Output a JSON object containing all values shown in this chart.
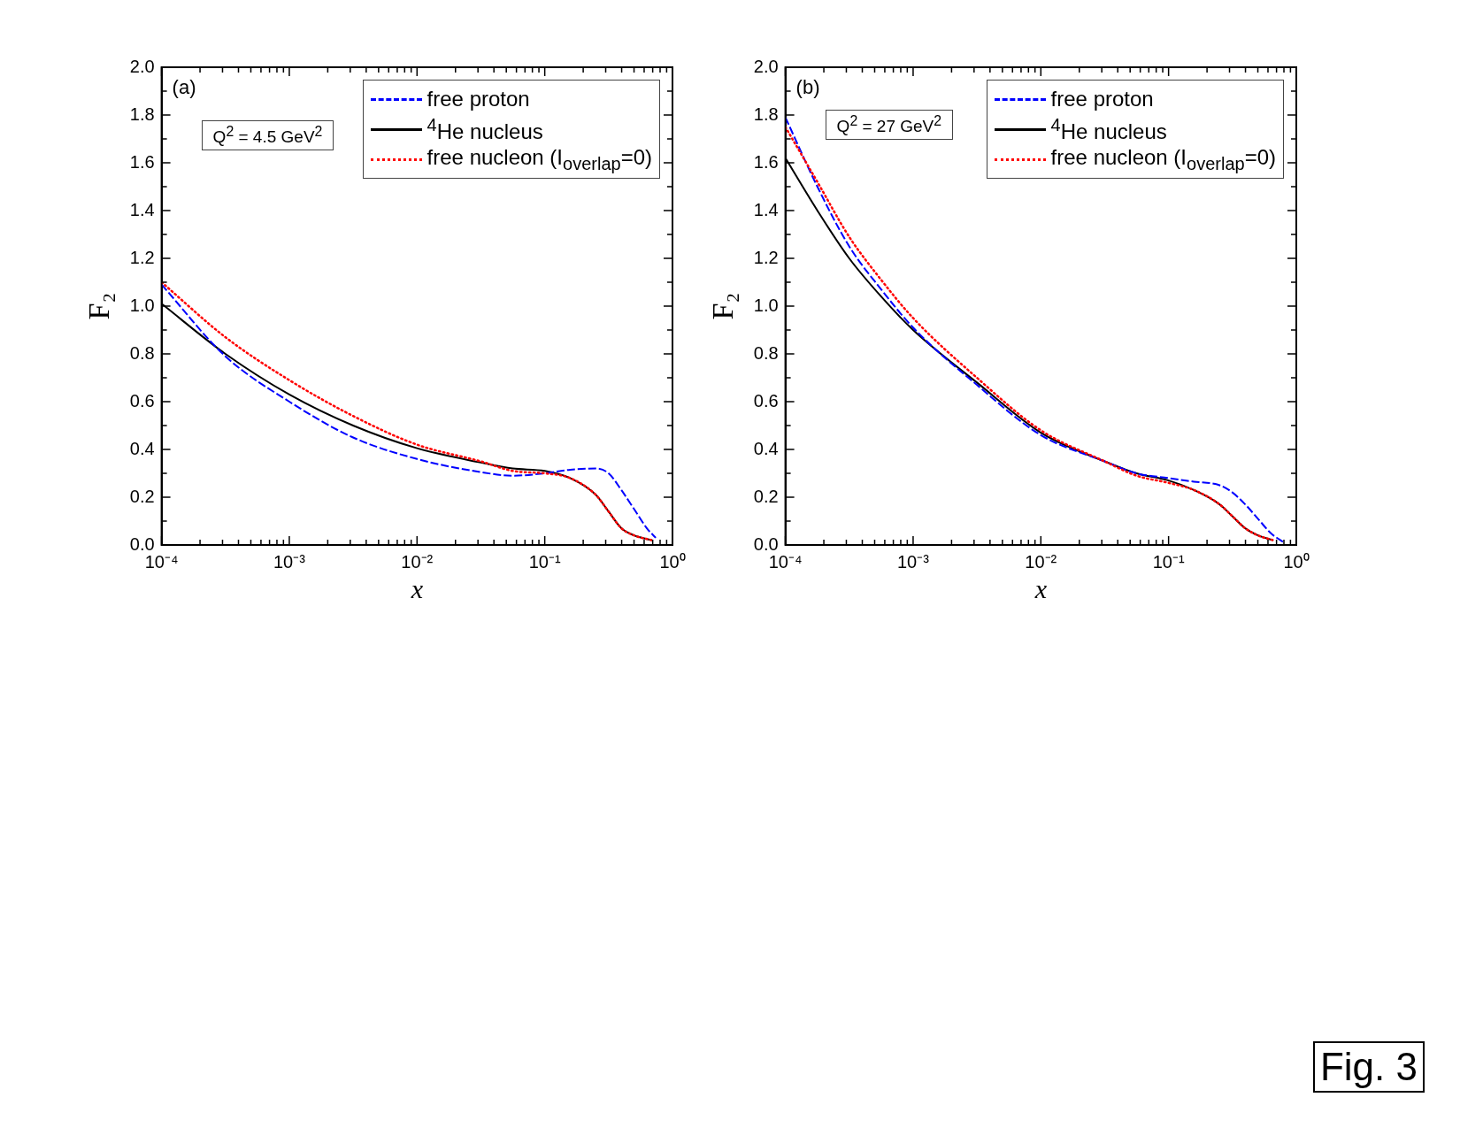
{
  "chart_data": [
    {
      "type": "line",
      "xlabel": "x",
      "ylabel": "F₂",
      "log": "x",
      "legend": "top right",
      "tick_labels": "xy",
      "grid": false,
      "annotations": [
        "(a)",
        "Q$^{2}$ = 4.5 GeV$^{2}$"
      ],
      "xlim": [
        0.0001,
        1
      ],
      "xticks": [
        {
          "value": 0.0001,
          "label": "10⁻⁴"
        },
        {
          "value": 0.0002,
          "label": null
        },
        {
          "value": 0.0003,
          "label": null
        },
        {
          "value": 0.0004,
          "label": null
        },
        {
          "value": 0.0005,
          "label": null
        },
        {
          "value": 0.0006,
          "label": null
        },
        {
          "value": 0.0007,
          "label": null
        },
        {
          "value": 0.0008,
          "label": null
        },
        {
          "value": 0.0009,
          "label": null
        },
        {
          "value": 0.001,
          "label": "10⁻³"
        },
        {
          "value": 0.002,
          "label": null
        },
        {
          "value": 0.003,
          "label": null
        },
        {
          "value": 0.004,
          "label": null
        },
        {
          "value": 0.005,
          "label": null
        },
        {
          "value": 0.006,
          "label": null
        },
        {
          "value": 0.007,
          "label": null
        },
        {
          "value": 0.008,
          "label": null
        },
        {
          "value": 0.009,
          "label": null
        },
        {
          "value": 0.01,
          "label": "10⁻²"
        },
        {
          "value": 0.02,
          "label": null
        },
        {
          "value": 0.03,
          "label": null
        },
        {
          "value": 0.04,
          "label": null
        },
        {
          "value": 0.05,
          "label": null
        },
        {
          "value": 0.06,
          "label": null
        },
        {
          "value": 0.07,
          "label": null
        },
        {
          "value": 0.08,
          "label": null
        },
        {
          "value": 0.09,
          "label": null
        },
        {
          "value": 0.1,
          "label": "10⁻¹"
        },
        {
          "value": 0.2,
          "label": null
        },
        {
          "value": 0.3,
          "label": null
        },
        {
          "value": 0.4,
          "label": null
        },
        {
          "value": 0.5,
          "label": null
        },
        {
          "value": 0.6,
          "label": null
        },
        {
          "value": 0.7,
          "label": null
        },
        {
          "value": 0.8,
          "label": null
        },
        {
          "value": 0.9,
          "label": null
        },
        {
          "value": 1,
          "label": "10⁰"
        }
      ],
      "ylim": [
        0,
        2
      ],
      "yticks": [
        {
          "value": 0,
          "label": "0.0"
        },
        {
          "value": 0.1,
          "label": null
        },
        {
          "value": 0.2,
          "label": "0.2"
        },
        {
          "value": 0.3,
          "label": null
        },
        {
          "value": 0.4,
          "label": "0.4"
        },
        {
          "value": 0.5,
          "label": null
        },
        {
          "value": 0.6,
          "label": "0.6"
        },
        {
          "value": 0.7,
          "label": null
        },
        {
          "value": 0.8,
          "label": "0.8"
        },
        {
          "value": 0.9,
          "label": null
        },
        {
          "value": 1,
          "label": "1.0"
        },
        {
          "value": 1.1,
          "label": null
        },
        {
          "value": 1.2,
          "label": "1.2"
        },
        {
          "value": 1.3,
          "label": null
        },
        {
          "value": 1.4,
          "label": "1.4"
        },
        {
          "value": 1.5,
          "label": null
        },
        {
          "value": 1.6,
          "label": "1.6"
        },
        {
          "value": 1.7,
          "label": null
        },
        {
          "value": 1.8,
          "label": "1.8"
        },
        {
          "value": 1.9,
          "label": null
        },
        {
          "value": 2,
          "label": "2.0"
        }
      ],
      "series": [
        {
          "name": "free proton",
          "color": "#0000ff",
          "line_style": "dashed",
          "x": [
            0.0001,
            0.000316,
            0.001,
            0.00316,
            0.01,
            0.0316,
            0.0562,
            0.1,
            0.158,
            0.251,
            0.316,
            0.398,
            0.501,
            0.63,
            0.74
          ],
          "values": [
            1.09,
            0.79,
            0.6,
            0.45,
            0.36,
            0.305,
            0.29,
            0.3,
            0.315,
            0.32,
            0.3,
            0.23,
            0.15,
            0.07,
            0.03
          ]
        },
        {
          "name": "$^{4}$He nucleus",
          "color": "#000000",
          "line_style": "solid",
          "x": [
            0.0001,
            0.000316,
            0.001,
            0.00316,
            0.01,
            0.0316,
            0.0562,
            0.1,
            0.158,
            0.251,
            0.316,
            0.398,
            0.501,
            0.69
          ],
          "values": [
            1.01,
            0.8,
            0.63,
            0.5,
            0.405,
            0.345,
            0.32,
            0.31,
            0.28,
            0.21,
            0.14,
            0.07,
            0.04,
            0.02
          ]
        },
        {
          "name": "free nucleon (I$_{overlap}$=0)",
          "color": "#ff0000",
          "line_style": "dotted",
          "x": [
            0.0001,
            0.000316,
            0.001,
            0.00316,
            0.01,
            0.0316,
            0.0562,
            0.1,
            0.158,
            0.251,
            0.316,
            0.398,
            0.501,
            0.69
          ],
          "values": [
            1.1,
            0.87,
            0.69,
            0.54,
            0.42,
            0.35,
            0.31,
            0.3,
            0.28,
            0.21,
            0.14,
            0.07,
            0.04,
            0.02
          ]
        }
      ]
    },
    {
      "type": "line",
      "xlabel": "x",
      "ylabel": "F₂",
      "log": "x",
      "legend": "top right",
      "tick_labels": "xy",
      "grid": false,
      "annotations": [
        "(b)",
        "Q$^{2}$ = 27 GeV$^{2}$",
        "Fig. 3"
      ],
      "xlim": [
        0.0001,
        1
      ],
      "xticks": [
        {
          "value": 0.0001,
          "label": "10⁻⁴"
        },
        {
          "value": 0.0002,
          "label": null
        },
        {
          "value": 0.0003,
          "label": null
        },
        {
          "value": 0.0004,
          "label": null
        },
        {
          "value": 0.0005,
          "label": null
        },
        {
          "value": 0.0006,
          "label": null
        },
        {
          "value": 0.0007,
          "label": null
        },
        {
          "value": 0.0008,
          "label": null
        },
        {
          "value": 0.0009,
          "label": null
        },
        {
          "value": 0.001,
          "label": "10⁻³"
        },
        {
          "value": 0.002,
          "label": null
        },
        {
          "value": 0.003,
          "label": null
        },
        {
          "value": 0.004,
          "label": null
        },
        {
          "value": 0.005,
          "label": null
        },
        {
          "value": 0.006,
          "label": null
        },
        {
          "value": 0.007,
          "label": null
        },
        {
          "value": 0.008,
          "label": null
        },
        {
          "value": 0.009,
          "label": null
        },
        {
          "value": 0.01,
          "label": "10⁻²"
        },
        {
          "value": 0.02,
          "label": null
        },
        {
          "value": 0.03,
          "label": null
        },
        {
          "value": 0.04,
          "label": null
        },
        {
          "value": 0.05,
          "label": null
        },
        {
          "value": 0.06,
          "label": null
        },
        {
          "value": 0.07,
          "label": null
        },
        {
          "value": 0.08,
          "label": null
        },
        {
          "value": 0.09,
          "label": null
        },
        {
          "value": 0.1,
          "label": "10⁻¹"
        },
        {
          "value": 0.2,
          "label": null
        },
        {
          "value": 0.3,
          "label": null
        },
        {
          "value": 0.4,
          "label": null
        },
        {
          "value": 0.5,
          "label": null
        },
        {
          "value": 0.6,
          "label": null
        },
        {
          "value": 0.7,
          "label": null
        },
        {
          "value": 0.8,
          "label": null
        },
        {
          "value": 0.9,
          "label": null
        },
        {
          "value": 1,
          "label": "10⁰"
        }
      ],
      "ylim": [
        0,
        2
      ],
      "yticks": [
        {
          "value": 0,
          "label": "0.0"
        },
        {
          "value": 0.1,
          "label": null
        },
        {
          "value": 0.2,
          "label": "0.2"
        },
        {
          "value": 0.3,
          "label": null
        },
        {
          "value": 0.4,
          "label": "0.4"
        },
        {
          "value": 0.5,
          "label": null
        },
        {
          "value": 0.6,
          "label": "0.6"
        },
        {
          "value": 0.7,
          "label": null
        },
        {
          "value": 0.8,
          "label": "0.8"
        },
        {
          "value": 0.9,
          "label": null
        },
        {
          "value": 1,
          "label": "1.0"
        },
        {
          "value": 1.1,
          "label": null
        },
        {
          "value": 1.2,
          "label": "1.2"
        },
        {
          "value": 1.3,
          "label": null
        },
        {
          "value": 1.4,
          "label": "1.4"
        },
        {
          "value": 1.5,
          "label": null
        },
        {
          "value": 1.6,
          "label": "1.6"
        },
        {
          "value": 1.7,
          "label": null
        },
        {
          "value": 1.8,
          "label": "1.8"
        },
        {
          "value": 1.9,
          "label": null
        },
        {
          "value": 2,
          "label": "2.0"
        }
      ],
      "series": [
        {
          "name": "free proton",
          "color": "#0000ff",
          "line_style": "dashed",
          "x": [
            0.0001,
            0.000178,
            0.000316,
            0.000562,
            0.001,
            0.00316,
            0.01,
            0.0316,
            0.0562,
            0.1,
            0.158,
            0.251,
            0.316,
            0.398,
            0.501,
            0.63,
            0.8
          ],
          "values": [
            1.79,
            1.5,
            1.25,
            1.07,
            0.91,
            0.67,
            0.46,
            0.35,
            0.3,
            0.28,
            0.265,
            0.25,
            0.22,
            0.17,
            0.11,
            0.05,
            0.01
          ]
        },
        {
          "name": "$^{4}$He nucleus",
          "color": "#000000",
          "line_style": "solid",
          "x": [
            0.0001,
            0.000178,
            0.000316,
            0.000562,
            0.001,
            0.00316,
            0.01,
            0.0316,
            0.0562,
            0.1,
            0.158,
            0.251,
            0.316,
            0.398,
            0.501,
            0.66
          ],
          "values": [
            1.62,
            1.4,
            1.2,
            1.04,
            0.9,
            0.68,
            0.47,
            0.35,
            0.3,
            0.27,
            0.23,
            0.17,
            0.12,
            0.07,
            0.04,
            0.02
          ]
        },
        {
          "name": "free nucleon (I$_{overlap}$=0)",
          "color": "#ff0000",
          "line_style": "dotted",
          "x": [
            0.0001,
            0.000178,
            0.000316,
            0.000562,
            0.001,
            0.00316,
            0.01,
            0.0316,
            0.0562,
            0.1,
            0.158,
            0.251,
            0.316,
            0.398,
            0.501,
            0.66
          ],
          "values": [
            1.75,
            1.52,
            1.29,
            1.11,
            0.95,
            0.7,
            0.48,
            0.35,
            0.29,
            0.26,
            0.23,
            0.17,
            0.12,
            0.07,
            0.04,
            0.02
          ]
        }
      ]
    }
  ]
}
